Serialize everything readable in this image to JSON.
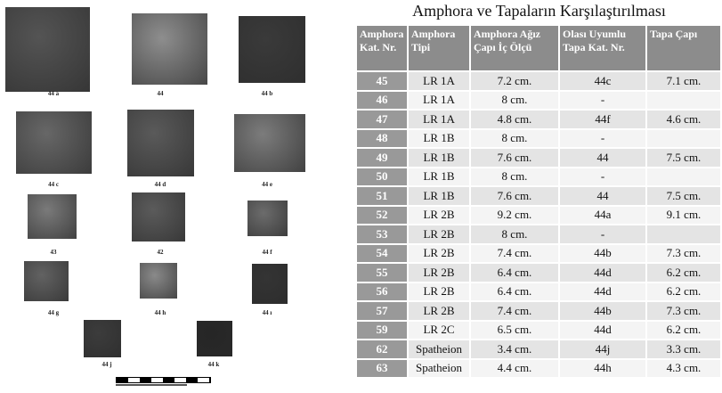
{
  "title": "Amphora ve Tapaların Karşılaştırılması",
  "photos": [
    "44 a",
    "44",
    "44 b",
    "44 c",
    "44 d",
    "44 e",
    "43",
    "42",
    "44 f",
    "44 g",
    "44 h",
    "44 ı",
    "44 j",
    "44 k"
  ],
  "table": {
    "header": [
      "Amphora Kat. Nr.",
      "Amphora Tipi",
      "Amphora Ağız Çapı İç Ölçü",
      "Olası Uyumlu Tapa Kat. Nr.",
      "Tapa Çapı"
    ],
    "rows": [
      [
        "45",
        "LR 1A",
        "7.2 cm.",
        "44c",
        "7.1 cm."
      ],
      [
        "46",
        "LR 1A",
        "8 cm.",
        "-"
      ],
      [
        "47",
        "LR 1A",
        "4.8 cm.",
        "44f",
        "4.6 cm."
      ],
      [
        "48",
        "LR 1B",
        "8 cm.",
        "-"
      ],
      [
        "49",
        "LR 1B",
        "7.6 cm.",
        "44",
        "7.5 cm."
      ],
      [
        "50",
        "LR 1B",
        "8 cm.",
        "-"
      ],
      [
        "51",
        "LR 1B",
        "7.6 cm.",
        "44",
        "7.5 cm."
      ],
      [
        "52",
        "LR 2B",
        "9.2 cm.",
        "44a",
        "9.1 cm."
      ],
      [
        "53",
        "LR 2B",
        "8 cm.",
        "-"
      ],
      [
        "54",
        "LR 2B",
        "7.4 cm.",
        "44b",
        "7.3 cm."
      ],
      [
        "55",
        "LR 2B",
        "6.4 cm.",
        "44d",
        "6.2 cm."
      ],
      [
        "56",
        "LR 2B",
        "6.4 cm.",
        "44d",
        "6.2 cm."
      ],
      [
        "57",
        "LR 2B",
        "7.4 cm.",
        "44b",
        "7.3 cm."
      ],
      [
        "59",
        "LR 2C",
        "6.5 cm.",
        "44d",
        "6.2 cm."
      ],
      [
        "62",
        "Spatheion",
        "3.4 cm.",
        "44j",
        "3.3 cm."
      ],
      [
        "63",
        "Spatheion",
        "4.4 cm.",
        "44h",
        "4.3 cm."
      ]
    ]
  }
}
